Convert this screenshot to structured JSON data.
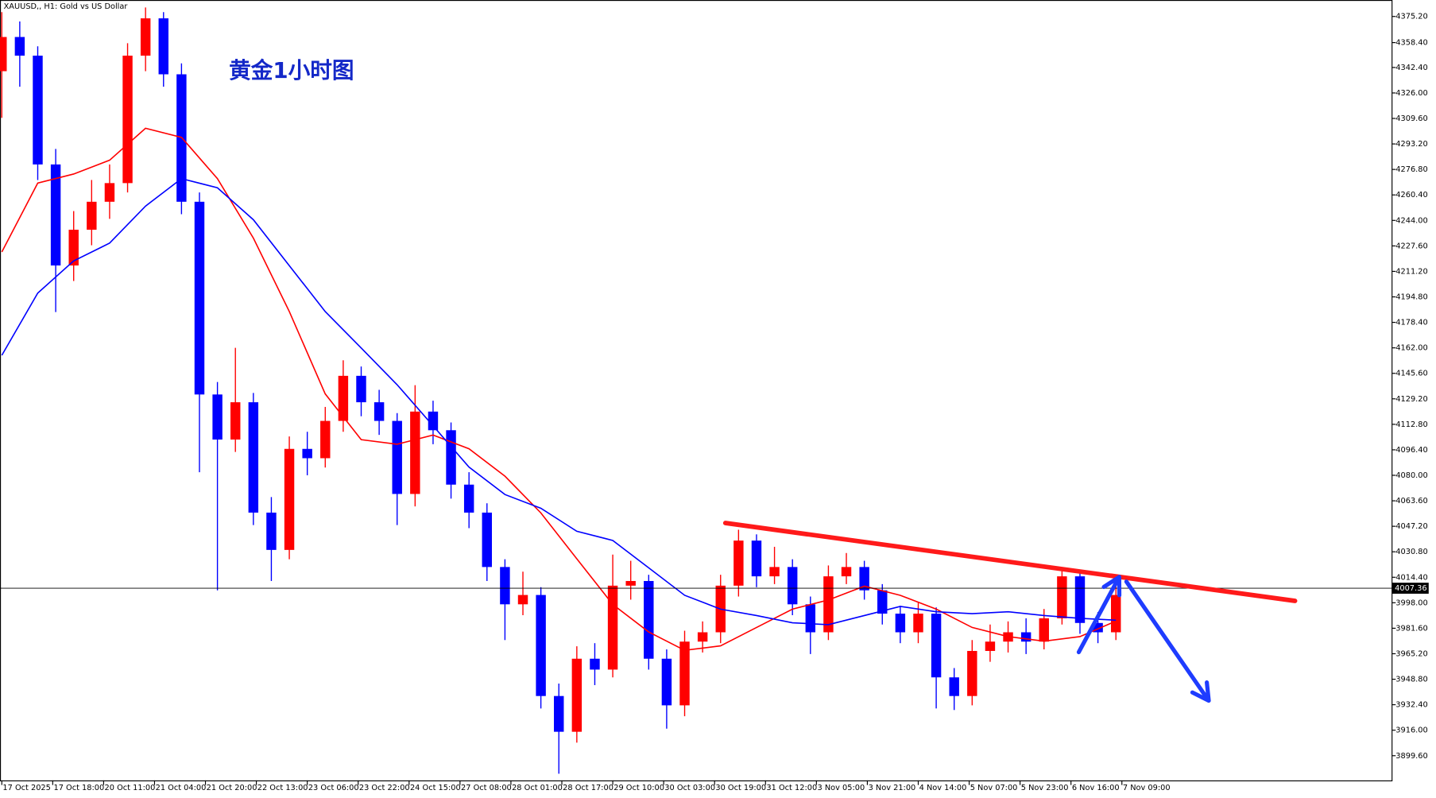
{
  "chart_data": {
    "type": "candlestick",
    "header": "XAUUSD,, H1:  Gold vs US Dollar",
    "title": "黄金1小时图",
    "xlim": [
      -0.6,
      464.2
    ],
    "ylim": [
      3883.7,
      4385.8
    ],
    "xticks": [
      {
        "value": 0,
        "label": "17 Oct 2025"
      },
      {
        "value": 17,
        "label": "17 Oct 18:00"
      },
      {
        "value": 34,
        "label": "20 Oct 11:00"
      },
      {
        "value": 51,
        "label": "21 Oct 04:00"
      },
      {
        "value": 68,
        "label": "21 Oct 20:00"
      },
      {
        "value": 85,
        "label": "22 Oct 13:00"
      },
      {
        "value": 102,
        "label": "23 Oct 06:00"
      },
      {
        "value": 119,
        "label": "23 Oct 22:00"
      },
      {
        "value": 136,
        "label": "24 Oct 15:00"
      },
      {
        "value": 153,
        "label": "27 Oct 08:00"
      },
      {
        "value": 170,
        "label": "28 Oct 01:00"
      },
      {
        "value": 187,
        "label": "28 Oct 17:00"
      },
      {
        "value": 204,
        "label": "29 Oct 10:00"
      },
      {
        "value": 221,
        "label": "30 Oct 03:00"
      },
      {
        "value": 238,
        "label": "30 Oct 19:00"
      },
      {
        "value": 255,
        "label": "31 Oct 12:00"
      },
      {
        "value": 272,
        "label": "3 Nov 05:00"
      },
      {
        "value": 289,
        "label": "3 Nov 21:00"
      },
      {
        "value": 306,
        "label": "4 Nov 14:00"
      },
      {
        "value": 323,
        "label": "5 Nov 07:00"
      },
      {
        "value": 340,
        "label": "5 Nov 23:00"
      },
      {
        "value": 357,
        "label": "6 Nov 16:00"
      },
      {
        "value": 374,
        "label": "7 Nov 09:00"
      }
    ],
    "yticks": [
      {
        "value": 4375.2,
        "label": "4375.20"
      },
      {
        "value": 4358.4,
        "label": "4358.40"
      },
      {
        "value": 4342.4,
        "label": "4342.40"
      },
      {
        "value": 4326,
        "label": "4326.00"
      },
      {
        "value": 4309.6,
        "label": "4309.60"
      },
      {
        "value": 4293.2,
        "label": "4293.20"
      },
      {
        "value": 4276.8,
        "label": "4276.80"
      },
      {
        "value": 4260.4,
        "label": "4260.40"
      },
      {
        "value": 4244,
        "label": "4244.00"
      },
      {
        "value": 4227.6,
        "label": "4227.60"
      },
      {
        "value": 4211.2,
        "label": "4211.20"
      },
      {
        "value": 4194.8,
        "label": "4194.80"
      },
      {
        "value": 4178.4,
        "label": "4178.40"
      },
      {
        "value": 4162,
        "label": "4162.00"
      },
      {
        "value": 4145.6,
        "label": "4145.60"
      },
      {
        "value": 4129.2,
        "label": "4129.20"
      },
      {
        "value": 4112.8,
        "label": "4112.80"
      },
      {
        "value": 4096.4,
        "label": "4096.40"
      },
      {
        "value": 4080,
        "label": "4080.00"
      },
      {
        "value": 4063.6,
        "label": "4063.60"
      },
      {
        "value": 4047.2,
        "label": "4047.20"
      },
      {
        "value": 4030.8,
        "label": "4030.80"
      },
      {
        "value": 4014.4,
        "label": "4014.40"
      },
      {
        "value": 3998,
        "label": "3998.00"
      },
      {
        "value": 3981.6,
        "label": "3981.60"
      },
      {
        "value": 3965.2,
        "label": "3965.20"
      },
      {
        "value": 3948.8,
        "label": "3948.80"
      },
      {
        "value": 3932.4,
        "label": "3932.40"
      },
      {
        "value": 3916,
        "label": "3916.00"
      },
      {
        "value": 3899.6,
        "label": "3899.60"
      }
    ],
    "last_price": 4007.36,
    "up_color": "#ff0000",
    "down_color": "#0000ff",
    "candles": {
      "x": [
        0,
        6,
        12,
        18,
        24,
        30,
        36,
        42,
        48,
        54,
        60,
        66,
        72,
        78,
        84,
        90,
        96,
        102,
        108,
        114,
        120,
        126,
        132,
        138,
        144,
        150,
        156,
        162,
        168,
        174,
        180,
        186,
        192,
        198,
        204,
        210,
        216,
        222,
        228,
        234,
        240,
        246,
        252,
        258,
        264,
        270,
        276,
        282,
        288,
        294,
        300,
        306,
        312,
        318,
        324,
        330,
        336,
        342,
        348,
        354,
        360,
        366,
        372
      ],
      "open": [
        4340,
        4362,
        4350,
        4280,
        4215,
        4238,
        4256,
        4268,
        4350,
        4374,
        4338,
        4256,
        4132,
        4103,
        4127,
        4056,
        4032,
        4097,
        4091,
        4115,
        4144,
        4127,
        4115,
        4068,
        4121,
        4109,
        4074,
        4056,
        4021,
        3997,
        4003,
        3938,
        3915,
        3962,
        3955,
        4009,
        4012,
        3962,
        3932,
        3973,
        3979,
        4009,
        4038,
        4015,
        4021,
        3997,
        3979,
        4015,
        4021,
        4006,
        3991,
        3979,
        3991,
        3950,
        3938,
        3967,
        3973,
        3979,
        3973,
        3988,
        4015,
        3985,
        3979
      ],
      "high": [
        4378,
        4372,
        4356,
        4290,
        4250,
        4270,
        4280,
        4358,
        4381,
        4378,
        4345,
        4262,
        4140,
        4162,
        4133,
        4066,
        4105,
        4108,
        4124,
        4154,
        4150,
        4135,
        4120,
        4138,
        4128,
        4114,
        4082,
        4062,
        4026,
        4018,
        4008,
        3946,
        3970,
        3972,
        4029,
        4025,
        4016,
        3968,
        3980,
        3986,
        4016,
        4045,
        4042,
        4034,
        4026,
        4002,
        4022,
        4030,
        4025,
        4010,
        3996,
        3998,
        3995,
        3956,
        3974,
        3984,
        3986,
        3988,
        3994,
        4019,
        4018,
        3992,
        4012
      ],
      "low": [
        4310,
        4330,
        4270,
        4185,
        4205,
        4228,
        4245,
        4262,
        4340,
        4330,
        4248,
        4082,
        4006,
        4095,
        4048,
        4012,
        4026,
        4080,
        4085,
        4108,
        4118,
        4106,
        4048,
        4060,
        4100,
        4065,
        4046,
        4012,
        3974,
        3990,
        3930,
        3888,
        3908,
        3945,
        3950,
        4000,
        3955,
        3917,
        3925,
        3966,
        3972,
        4002,
        4008,
        4010,
        3990,
        3965,
        3974,
        4010,
        4000,
        3984,
        3972,
        3972,
        3930,
        3929,
        3932,
        3960,
        3966,
        3965,
        3968,
        3984,
        3978,
        3972,
        3974
      ],
      "close": [
        4362,
        4350,
        4280,
        4215,
        4238,
        4256,
        4268,
        4350,
        4374,
        4338,
        4256,
        4132,
        4103,
        4127,
        4056,
        4032,
        4097,
        4091,
        4115,
        4144,
        4127,
        4115,
        4068,
        4121,
        4109,
        4074,
        4056,
        4021,
        3997,
        4003,
        3938,
        3915,
        3962,
        3955,
        4009,
        4012,
        3962,
        3932,
        3973,
        3979,
        4009,
        4038,
        4015,
        4021,
        3997,
        3979,
        4015,
        4021,
        4006,
        3991,
        3979,
        3991,
        3950,
        3938,
        3967,
        3973,
        3979,
        3973,
        3988,
        4015,
        3985,
        3979,
        4003
      ]
    },
    "series": [
      {
        "color": "#ff0000",
        "x": [
          0,
          12,
          24,
          36,
          48,
          60,
          72,
          84,
          96,
          108,
          120,
          132,
          144,
          156,
          168,
          180,
          192,
          204,
          216,
          228,
          240,
          252,
          264,
          276,
          288,
          300,
          312,
          324,
          336,
          348,
          360,
          372
        ],
        "values": [
          4223.7,
          4268.0,
          4273.8,
          4282.7,
          4303.3,
          4297.4,
          4270.9,
          4232.6,
          4185.4,
          4132.4,
          4102.9,
          4100.0,
          4105.9,
          4097.1,
          4079.4,
          4055.8,
          4026.3,
          3996.9,
          3979.2,
          3967.4,
          3970.3,
          3982.1,
          3993.9,
          3999.8,
          4008.7,
          4002.8,
          3993.9,
          3982.1,
          3976.2,
          3973.3,
          3976.2,
          3986.2
        ]
      },
      {
        "color": "#0000ff",
        "x": [
          0,
          12,
          24,
          36,
          48,
          60,
          72,
          84,
          96,
          108,
          120,
          132,
          144,
          156,
          168,
          180,
          192,
          204,
          216,
          228,
          240,
          252,
          264,
          276,
          288,
          300,
          312,
          324,
          336,
          348,
          360,
          372
        ],
        "values": [
          4157.2,
          4197.2,
          4217.9,
          4229.4,
          4253.2,
          4270.9,
          4265.0,
          4244.4,
          4214.9,
          4185.4,
          4161.9,
          4138.3,
          4111.8,
          4085.3,
          4067.6,
          4058.8,
          4044.0,
          4038.1,
          4020.5,
          4002.8,
          3993.9,
          3989.8,
          3985.1,
          3983.9,
          3989.8,
          3995.7,
          3992.2,
          3991.0,
          3992.2,
          3989.8,
          3988.0,
          3986.8
        ]
      }
    ],
    "trendline": {
      "color": "#ff1a1a",
      "x": [
        241.6,
        431.8
      ],
      "y": [
        4049.3,
        3999.2
      ]
    },
    "arrows": [
      {
        "color": "#1e3cff",
        "x": [
          359.6,
          373.1
        ],
        "y": [
          3966.2,
          4014.6
        ]
      },
      {
        "color": "#1e3cff",
        "x": [
          375.5,
          403.0
        ],
        "y": [
          4011.6,
          3935.0
        ]
      }
    ]
  }
}
